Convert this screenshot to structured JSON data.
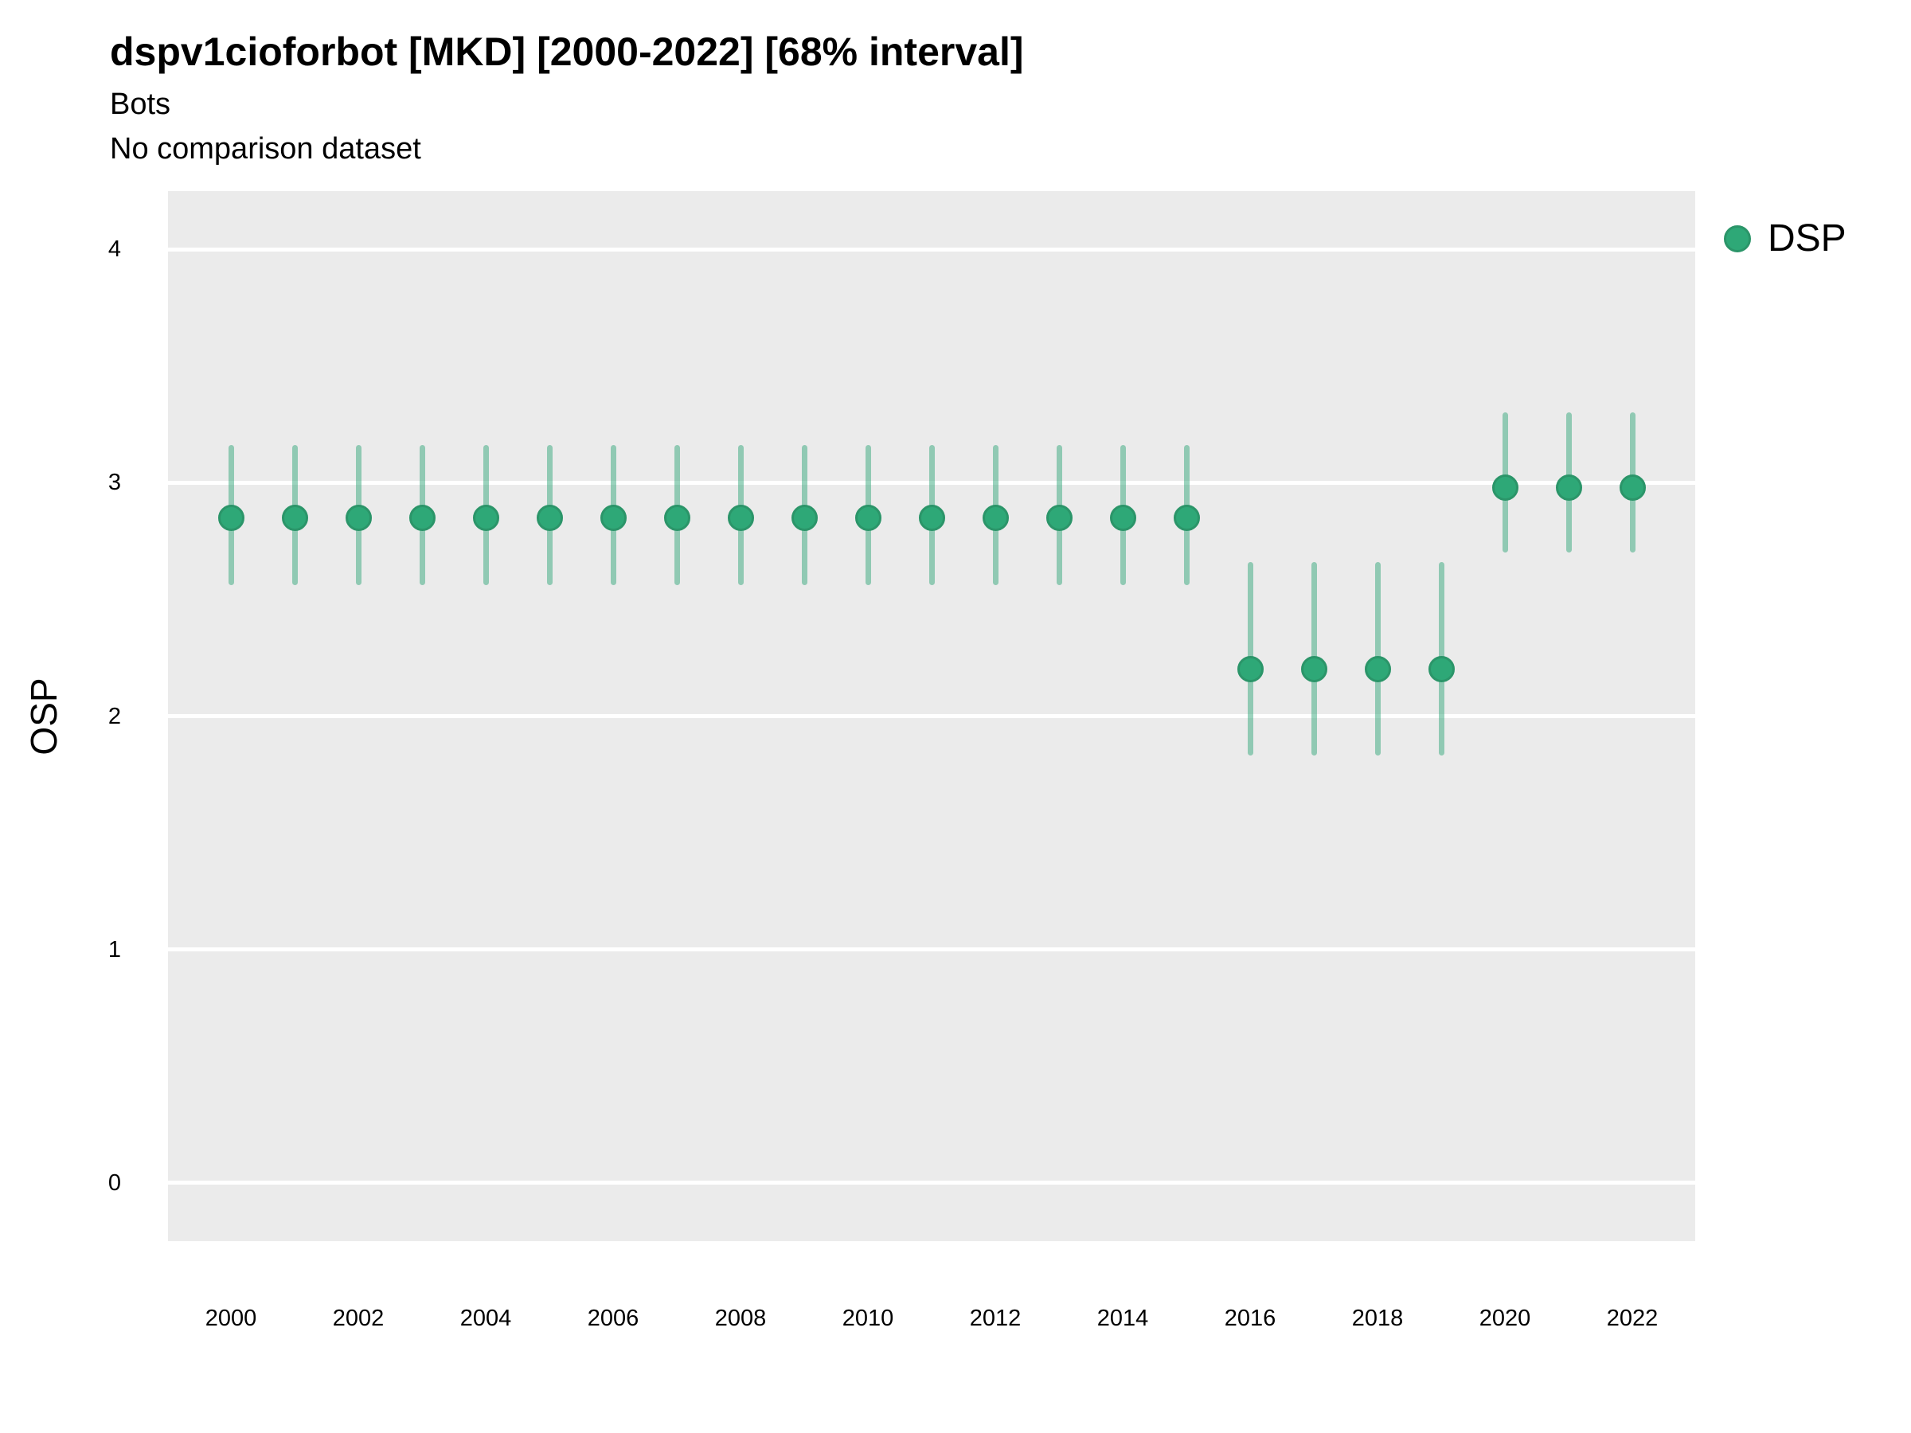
{
  "title": "dspv1cioforbot [MKD] [2000-2022] [68% interval]",
  "subtitle_line1": "Bots",
  "subtitle_line2": "No comparison dataset",
  "legend": {
    "items": [
      {
        "label": "DSP",
        "color": "#2EA877",
        "edge_color": "#2B9569"
      }
    ]
  },
  "y_axis": {
    "title": "OSP",
    "ticks": [
      "4",
      "3",
      "2",
      "1",
      "0"
    ]
  },
  "x_axis": {
    "ticks": [
      "2000",
      "2002",
      "2004",
      "2006",
      "2008",
      "2010",
      "2012",
      "2014",
      "2016",
      "2018",
      "2020",
      "2022"
    ]
  },
  "colors": {
    "point_fill": "#2EA877",
    "point_edge": "#2B9569",
    "interval_bar": "rgba(53,168,123,0.5)",
    "panel_background": "#EBEBEB",
    "gridline": "#FFFFFF",
    "text": "#000000"
  },
  "chart_data": {
    "type": "scatter",
    "title": "dspv1cioforbot [MKD] [2000-2022] [68% interval]",
    "subtitle": [
      "Bots",
      "No comparison dataset"
    ],
    "xlabel": "",
    "ylabel": "OSP",
    "ylim": [
      -0.25,
      4.25
    ],
    "x_tick_labels": [
      2000,
      2002,
      2004,
      2006,
      2008,
      2010,
      2012,
      2014,
      2016,
      2018,
      2020,
      2022
    ],
    "grid": "horizontal-major-only",
    "legend_position": "right-top",
    "interval": "68%",
    "series": [
      {
        "name": "DSP",
        "x": [
          2000,
          2001,
          2002,
          2003,
          2004,
          2005,
          2006,
          2007,
          2008,
          2009,
          2010,
          2011,
          2012,
          2013,
          2014,
          2015,
          2016,
          2017,
          2018,
          2019,
          2020,
          2021,
          2022
        ],
        "y": [
          2.85,
          2.85,
          2.85,
          2.85,
          2.85,
          2.85,
          2.85,
          2.85,
          2.85,
          2.85,
          2.85,
          2.85,
          2.85,
          2.85,
          2.85,
          2.85,
          2.2,
          2.2,
          2.2,
          2.2,
          2.98,
          2.98,
          2.98
        ],
        "y_lo": [
          2.56,
          2.56,
          2.56,
          2.56,
          2.56,
          2.56,
          2.56,
          2.56,
          2.56,
          2.56,
          2.56,
          2.56,
          2.56,
          2.56,
          2.56,
          2.56,
          1.83,
          1.83,
          1.83,
          1.83,
          2.7,
          2.7,
          2.7
        ],
        "y_hi": [
          3.16,
          3.16,
          3.16,
          3.16,
          3.16,
          3.16,
          3.16,
          3.16,
          3.16,
          3.16,
          3.16,
          3.16,
          3.16,
          3.16,
          3.16,
          3.16,
          2.66,
          2.66,
          2.66,
          2.66,
          3.3,
          3.3,
          3.3
        ]
      }
    ]
  }
}
